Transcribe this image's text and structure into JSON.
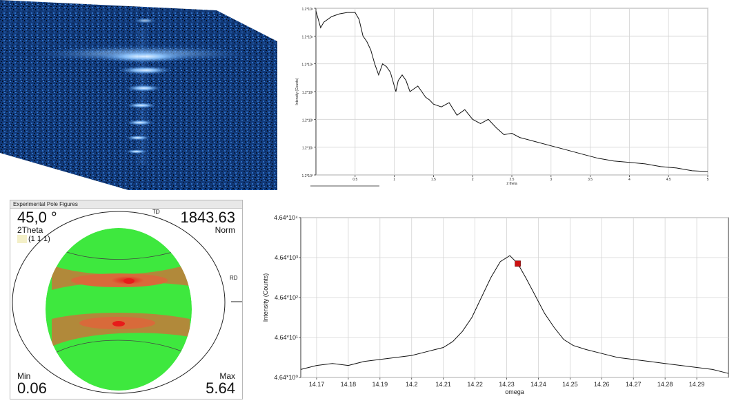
{
  "pole_panel": {
    "title": "Experimental Pole Figures",
    "angle_value": "45,0 °",
    "angle_label": "2Theta",
    "hkl": "(1 1 1)",
    "norm_value": "1843.63",
    "norm_label": "Norm",
    "td_label": "TD",
    "rd_label": "RD",
    "min_label": "Min",
    "min_value": "0.06",
    "max_label": "Max",
    "max_value": "5.64"
  },
  "colors": {
    "map_background": "#1a3a7a",
    "map_fringe": "#9fd0ff",
    "pole_fill": "#3ee83e",
    "pole_band": "#d86a3a",
    "pole_hot": "#e81a1a",
    "marker": "#cc1111"
  },
  "chart_data": [
    {
      "type": "line",
      "id": "xrr",
      "xlabel": "2 theta",
      "ylabel": "Intensity (Counts)",
      "xlim": [
        0,
        5
      ],
      "ylim": [
        0,
        6
      ],
      "x_ticks": [
        "0.5",
        "1",
        "1.5",
        "2",
        "2.5",
        "3",
        "3.5",
        "4",
        "4.5",
        "5"
      ],
      "y_ticks": [
        "1.2*10⁰",
        "1.2*10¹",
        "1.2*10²",
        "1.2*10³",
        "1.2*10⁴",
        "1.2*10⁵",
        "1.2*10⁶"
      ],
      "grid": true,
      "series": [
        {
          "x": [
            0.0,
            0.03,
            0.06,
            0.1,
            0.2,
            0.3,
            0.4,
            0.5,
            0.55,
            0.6,
            0.65,
            0.7,
            0.75,
            0.8,
            0.85,
            0.9,
            0.95,
            1.0,
            1.02,
            1.05,
            1.1,
            1.15,
            1.2,
            1.25,
            1.3,
            1.35,
            1.4,
            1.45,
            1.5,
            1.6,
            1.7,
            1.8,
            1.9,
            2.0,
            2.1,
            2.2,
            2.3,
            2.4,
            2.5,
            2.6,
            2.8,
            3.0,
            3.2,
            3.4,
            3.6,
            3.8,
            4.0,
            4.2,
            4.4,
            4.6,
            4.8,
            5.0
          ],
          "y": [
            5.9,
            5.6,
            5.3,
            5.5,
            5.7,
            5.8,
            5.85,
            5.85,
            5.6,
            5.0,
            4.8,
            4.5,
            4.0,
            3.6,
            4.0,
            3.9,
            3.7,
            3.2,
            3.0,
            3.4,
            3.6,
            3.4,
            3.0,
            3.1,
            3.2,
            3.0,
            2.8,
            2.7,
            2.55,
            2.45,
            2.6,
            2.15,
            2.35,
            2.0,
            1.85,
            2.0,
            1.7,
            1.45,
            1.5,
            1.35,
            1.2,
            1.05,
            0.9,
            0.75,
            0.6,
            0.5,
            0.45,
            0.4,
            0.3,
            0.25,
            0.15,
            0.12
          ]
        }
      ]
    },
    {
      "type": "line",
      "id": "rocking",
      "xlabel": "omega",
      "ylabel": "Intensity (Counts)",
      "xlim": [
        14.165,
        14.3
      ],
      "ylim": [
        0,
        4
      ],
      "x_ticks": [
        "14.17",
        "14.18",
        "14.19",
        "14.2",
        "14.21",
        "14.22",
        "14.23",
        "14.24",
        "14.25",
        "14.26",
        "14.27",
        "14.28",
        "14.29"
      ],
      "y_ticks": [
        "4.64*10⁰",
        "4.64*10¹",
        "4.64*10²",
        "4.64*10³",
        "4.64*10⁴"
      ],
      "grid": true,
      "marker_point": {
        "x": 14.2335,
        "y": 2.85
      },
      "series": [
        {
          "x": [
            14.165,
            14.17,
            14.175,
            14.18,
            14.185,
            14.19,
            14.195,
            14.2,
            14.205,
            14.21,
            14.213,
            14.216,
            14.219,
            14.222,
            14.225,
            14.228,
            14.231,
            14.2335,
            14.236,
            14.239,
            14.242,
            14.245,
            14.248,
            14.251,
            14.255,
            14.26,
            14.265,
            14.27,
            14.275,
            14.28,
            14.285,
            14.29,
            14.295,
            14.3
          ],
          "y": [
            0.2,
            0.3,
            0.35,
            0.3,
            0.4,
            0.45,
            0.5,
            0.55,
            0.65,
            0.75,
            0.9,
            1.15,
            1.5,
            2.0,
            2.5,
            2.9,
            3.05,
            2.85,
            2.5,
            2.05,
            1.6,
            1.25,
            0.95,
            0.8,
            0.7,
            0.6,
            0.5,
            0.45,
            0.4,
            0.35,
            0.3,
            0.25,
            0.2,
            0.1
          ]
        }
      ]
    }
  ]
}
